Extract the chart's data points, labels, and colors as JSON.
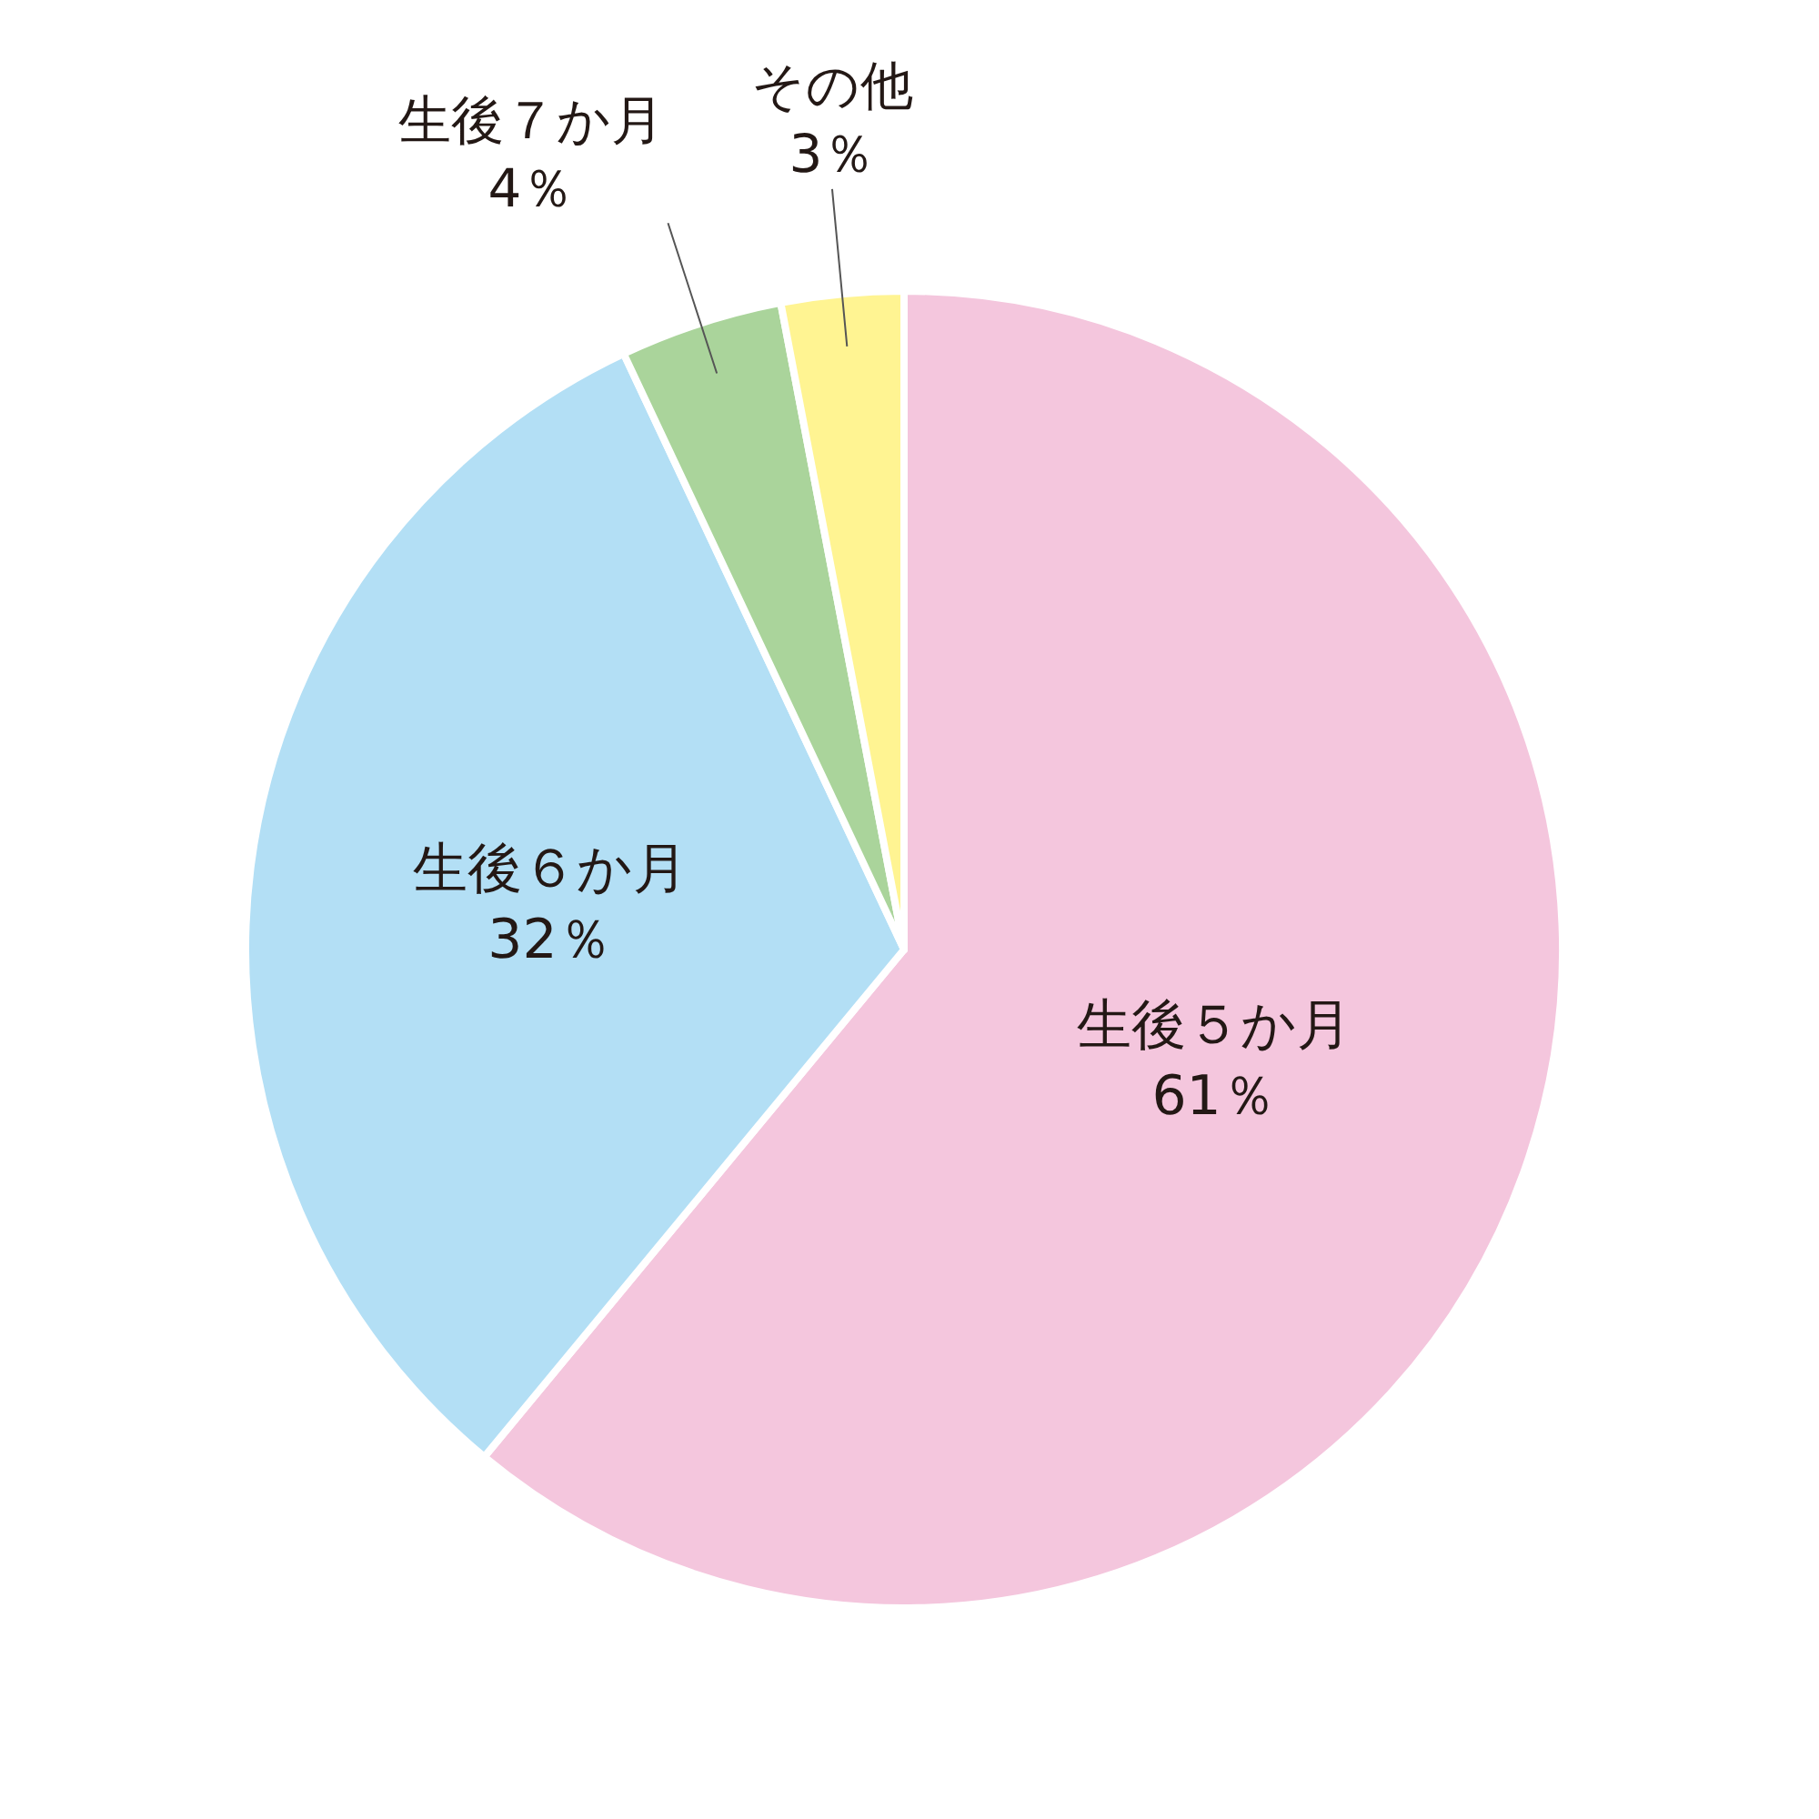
{
  "chart_data": {
    "type": "pie",
    "categories": [
      "生後５か月",
      "生後６か月",
      "生後７か月",
      "その他"
    ],
    "values": [
      61,
      32,
      4,
      3
    ],
    "value_labels": [
      "61％",
      "32％",
      "4％",
      "3％"
    ],
    "colors": [
      "#f4c6dd",
      "#b3dff5",
      "#aad49b",
      "#fff492"
    ]
  }
}
